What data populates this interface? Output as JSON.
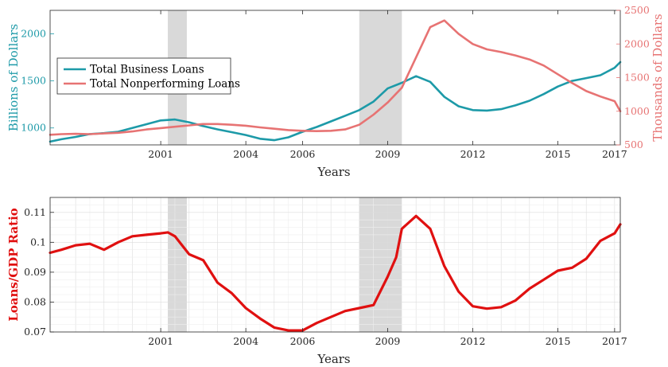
{
  "colors": {
    "business": "#1d9aa8",
    "nonperforming": "#e77373",
    "ratio": "#e01010",
    "recession": "#d9d9d9"
  },
  "chart_data": [
    {
      "type": "line",
      "xlabel": "Years",
      "ylabel_left": "Billions of Dollars",
      "ylabel_right": "Thousands of Dollars",
      "xlim": [
        1997.1,
        2017.2
      ],
      "ylim_left": [
        820,
        2250
      ],
      "ylim_right": [
        500,
        2500
      ],
      "xticks": [
        2001,
        2004,
        2006,
        2009,
        2012,
        2015,
        2017
      ],
      "yticks_left": [
        1000,
        1500,
        2000
      ],
      "yticks_right": [
        500,
        1000,
        1500,
        2000,
        2500
      ],
      "recessions": [
        [
          2001.25,
          2001.92
        ],
        [
          2008.0,
          2009.5
        ]
      ],
      "grid": false,
      "legend_position": "left",
      "series": [
        {
          "name": "Total Business Loans",
          "axis": "left",
          "x": [
            1997.1,
            1997.5,
            1998.0,
            1998.5,
            1999.0,
            1999.5,
            2000.0,
            2000.5,
            2001.0,
            2001.5,
            2002.0,
            2002.5,
            2003.0,
            2003.5,
            2004.0,
            2004.5,
            2005.0,
            2005.5,
            2006.0,
            2006.5,
            2007.0,
            2007.5,
            2008.0,
            2008.5,
            2009.0,
            2009.5,
            2010.0,
            2010.5,
            2011.0,
            2011.5,
            2012.0,
            2012.5,
            2013.0,
            2013.5,
            2014.0,
            2014.5,
            2015.0,
            2015.5,
            2016.0,
            2016.5,
            2017.0,
            2017.2
          ],
          "values": [
            855,
            880,
            905,
            935,
            945,
            960,
            1000,
            1040,
            1080,
            1090,
            1060,
            1020,
            985,
            955,
            925,
            885,
            870,
            900,
            960,
            1010,
            1070,
            1130,
            1190,
            1280,
            1420,
            1480,
            1550,
            1490,
            1330,
            1230,
            1190,
            1185,
            1200,
            1240,
            1290,
            1360,
            1440,
            1500,
            1530,
            1560,
            1640,
            1700
          ]
        },
        {
          "name": "Total Nonperforming Loans",
          "axis": "right",
          "x": [
            1997.1,
            1997.5,
            1998.0,
            1998.5,
            1999.0,
            1999.5,
            2000.0,
            2000.5,
            2001.0,
            2001.5,
            2002.0,
            2002.5,
            2003.0,
            2003.5,
            2004.0,
            2004.5,
            2005.0,
            2005.5,
            2006.0,
            2006.5,
            2007.0,
            2007.5,
            2008.0,
            2008.5,
            2009.0,
            2009.5,
            2010.0,
            2010.5,
            2011.0,
            2011.5,
            2012.0,
            2012.5,
            2013.0,
            2013.5,
            2014.0,
            2014.5,
            2015.0,
            2015.5,
            2016.0,
            2016.5,
            2017.0,
            2017.2
          ],
          "values": [
            650,
            660,
            665,
            660,
            670,
            680,
            700,
            730,
            750,
            770,
            790,
            810,
            810,
            800,
            785,
            760,
            740,
            720,
            710,
            705,
            710,
            730,
            800,
            950,
            1130,
            1350,
            1800,
            2250,
            2350,
            2150,
            2000,
            1920,
            1880,
            1830,
            1770,
            1680,
            1550,
            1420,
            1300,
            1220,
            1150,
            1000
          ]
        }
      ]
    },
    {
      "type": "line",
      "xlabel": "Years",
      "ylabel": "Loans/GDP Ratio",
      "xlim": [
        1997.1,
        2017.2
      ],
      "ylim": [
        0.07,
        0.115
      ],
      "xticks": [
        2001,
        2004,
        2006,
        2009,
        2012,
        2015,
        2017
      ],
      "yticks": [
        0.07,
        0.08,
        0.09,
        0.1,
        0.11
      ],
      "yticklabels": [
        "0.07",
        "0.08",
        "0.09",
        "0.1",
        "0.11"
      ],
      "recessions": [
        [
          2001.25,
          2001.92
        ],
        [
          2008.0,
          2009.5
        ]
      ],
      "grid": true,
      "series": [
        {
          "name": "",
          "x": [
            1997.1,
            1997.5,
            1998.0,
            1998.5,
            1999.0,
            1999.5,
            2000.0,
            2000.5,
            2001.0,
            2001.25,
            2001.5,
            2002.0,
            2002.5,
            2003.0,
            2003.5,
            2004.0,
            2004.5,
            2005.0,
            2005.5,
            2006.0,
            2006.5,
            2007.0,
            2007.5,
            2008.0,
            2008.5,
            2009.0,
            2009.3,
            2009.5,
            2010.0,
            2010.5,
            2011.0,
            2011.5,
            2012.0,
            2012.5,
            2013.0,
            2013.5,
            2014.0,
            2014.5,
            2015.0,
            2015.5,
            2016.0,
            2016.5,
            2017.0,
            2017.2
          ],
          "values": [
            0.0965,
            0.0975,
            0.099,
            0.0995,
            0.0975,
            0.1,
            0.102,
            0.1025,
            0.103,
            0.1033,
            0.102,
            0.096,
            0.094,
            0.0865,
            0.083,
            0.078,
            0.0745,
            0.0715,
            0.0705,
            0.0705,
            0.073,
            0.075,
            0.077,
            0.078,
            0.079,
            0.0885,
            0.095,
            0.1045,
            0.1088,
            0.1045,
            0.092,
            0.0835,
            0.0786,
            0.0778,
            0.0783,
            0.0805,
            0.0845,
            0.0875,
            0.0905,
            0.0915,
            0.0945,
            0.1005,
            0.103,
            0.106
          ]
        }
      ]
    }
  ]
}
